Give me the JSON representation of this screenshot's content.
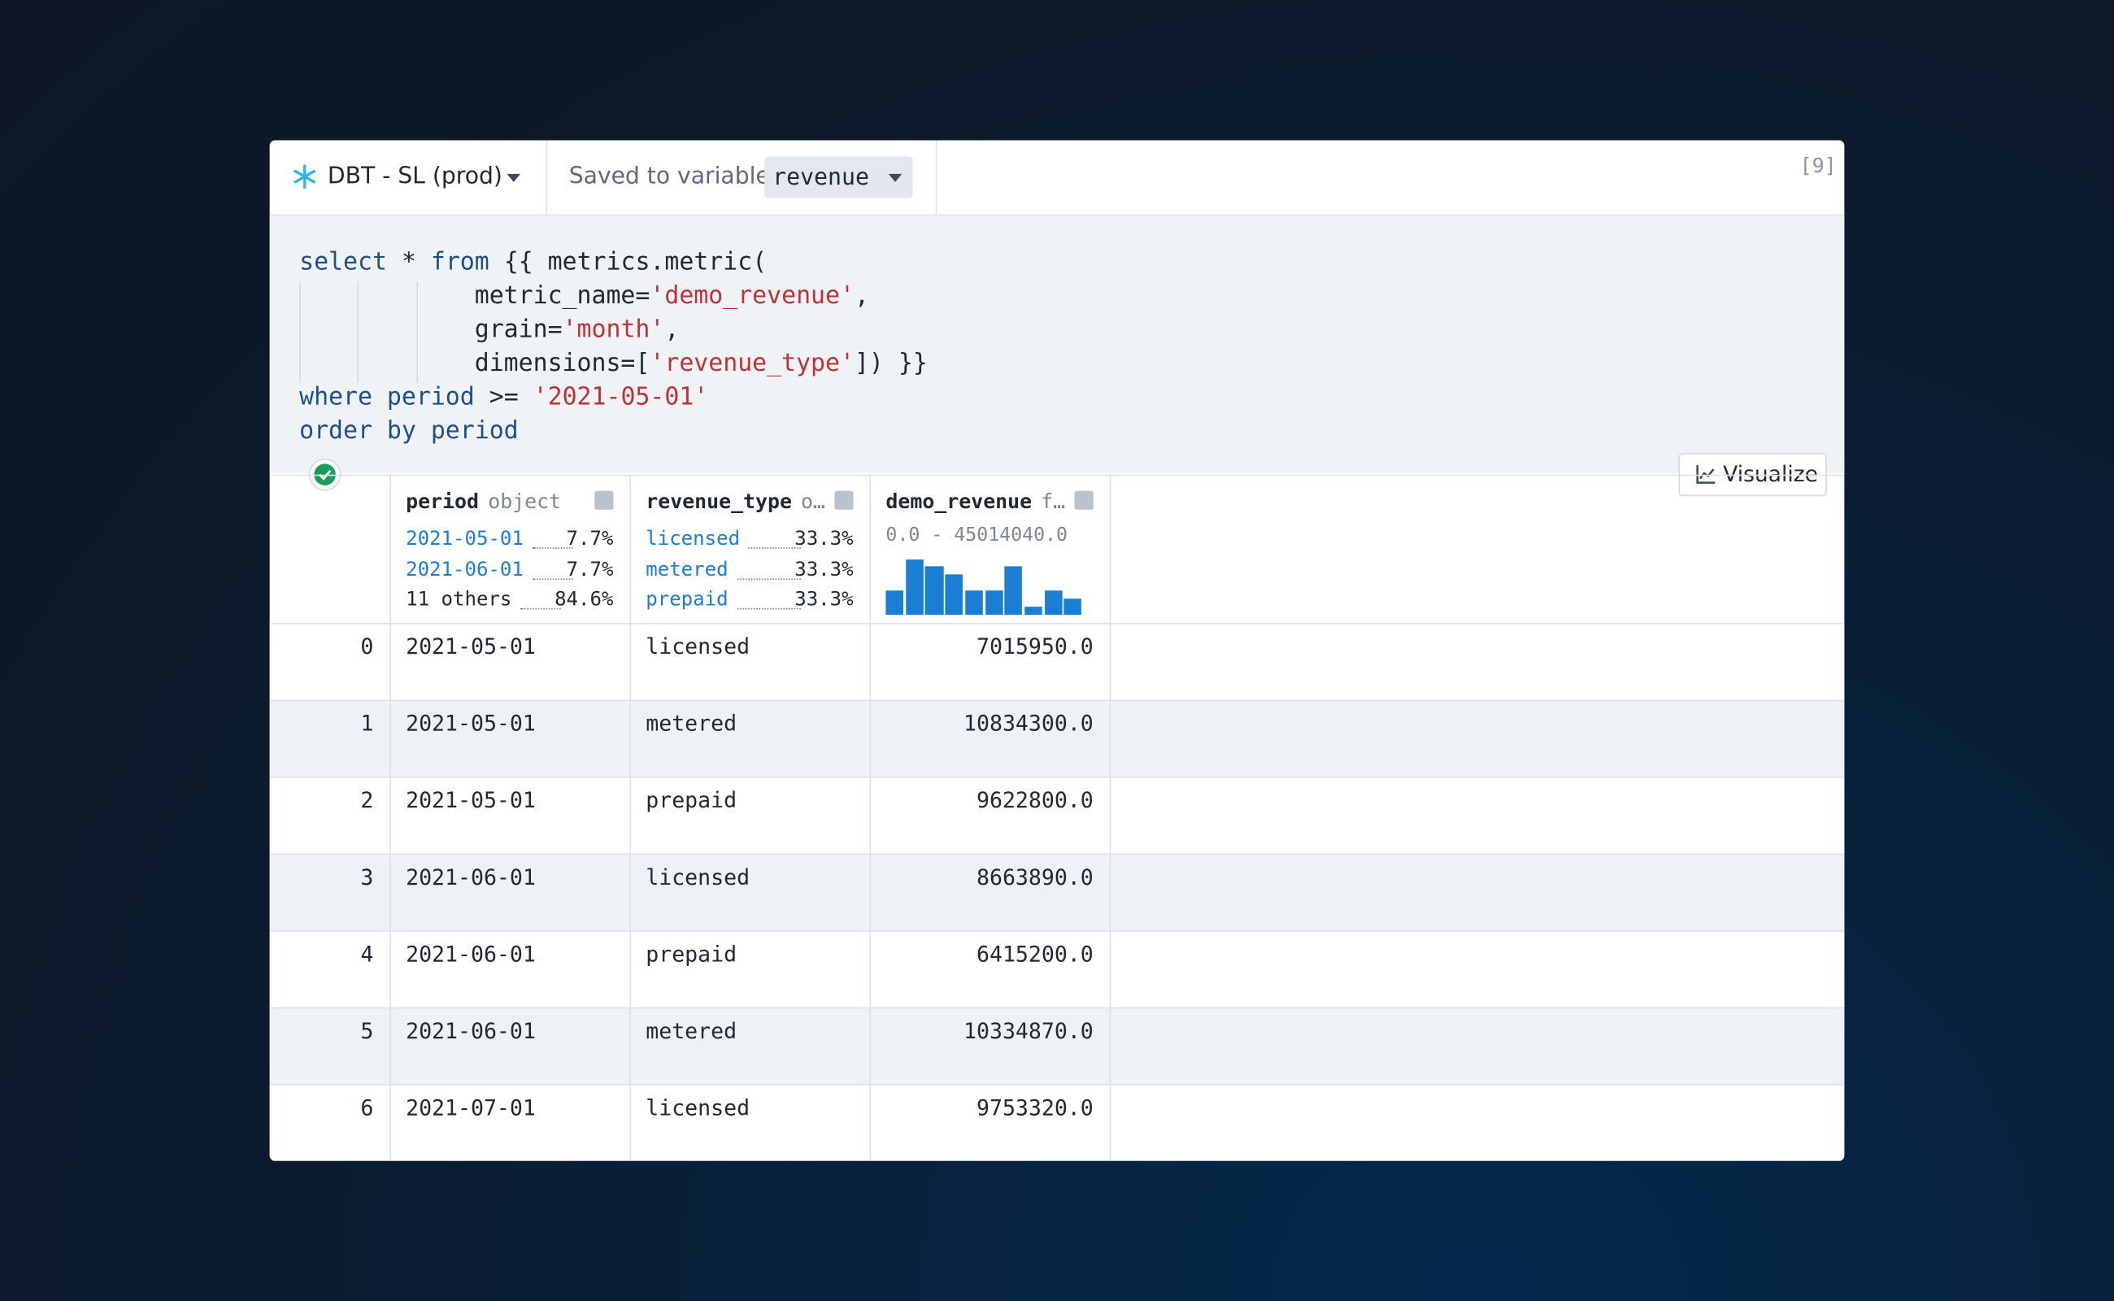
{
  "toolbar": {
    "connection": "DBT - SL (prod)",
    "saved_label": "Saved to variable",
    "variable": "revenue",
    "cell_number": "[9]"
  },
  "code": [
    [
      {
        "text": "select",
        "style": "keyword"
      },
      {
        "text": " * ",
        "style": "plain"
      },
      {
        "text": "from",
        "style": "keyword"
      },
      {
        "text": " {{ metrics.metric(",
        "style": "plain"
      }
    ],
    [
      {
        "text": "            metric_name=",
        "style": "plain"
      },
      {
        "text": "'demo_revenue'",
        "style": "string"
      },
      {
        "text": ",",
        "style": "plain"
      }
    ],
    [
      {
        "text": "            grain=",
        "style": "plain"
      },
      {
        "text": "'month'",
        "style": "string"
      },
      {
        "text": ",",
        "style": "plain"
      }
    ],
    [
      {
        "text": "            dimensions=[",
        "style": "plain"
      },
      {
        "text": "'revenue_type'",
        "style": "string"
      },
      {
        "text": "]) }}",
        "style": "plain"
      }
    ],
    [
      {
        "text": "where period",
        "style": "keyword"
      },
      {
        "text": " >= ",
        "style": "plain"
      },
      {
        "text": "'2021-05-01'",
        "style": "string"
      }
    ],
    [
      {
        "text": "order by period",
        "style": "keyword"
      }
    ]
  ],
  "visualize_button": "Visualize",
  "table": {
    "columns": [
      {
        "name": "period",
        "dtype": "object",
        "summary": [
          {
            "label": "2021-05-01",
            "pct": "7.7%",
            "color": "#1a7fd4"
          },
          {
            "label": "2021-06-01",
            "pct": "7.7%",
            "color": "#1a7fd4"
          },
          {
            "label": "11 others",
            "pct": "84.6%",
            "color": "#1f2933"
          }
        ]
      },
      {
        "name": "revenue_type",
        "dtype": "o…",
        "summary": [
          {
            "label": "licensed",
            "pct": "33.3%",
            "color": "#1a7fd4"
          },
          {
            "label": "metered",
            "pct": "33.3%",
            "color": "#1a7fd4"
          },
          {
            "label": "prepaid",
            "pct": "33.3%",
            "color": "#1a7fd4"
          }
        ]
      },
      {
        "name": "demo_revenue",
        "dtype": "f…",
        "range": "0.0 - 45014040.0",
        "histogram": [
          18,
          41,
          36,
          30,
          18,
          18,
          36,
          6,
          18,
          12
        ],
        "histogram_color": "#1a7fd4"
      }
    ],
    "rows": [
      [
        0,
        "2021-05-01",
        "licensed",
        "7015950.0"
      ],
      [
        1,
        "2021-05-01",
        "metered",
        "10834300.0"
      ],
      [
        2,
        "2021-05-01",
        "prepaid",
        "9622800.0"
      ],
      [
        3,
        "2021-06-01",
        "licensed",
        "8663890.0"
      ],
      [
        4,
        "2021-06-01",
        "prepaid",
        "6415200.0"
      ],
      [
        5,
        "2021-06-01",
        "metered",
        "10334870.0"
      ],
      [
        6,
        "2021-07-01",
        "licensed",
        "9753320.0"
      ]
    ]
  }
}
